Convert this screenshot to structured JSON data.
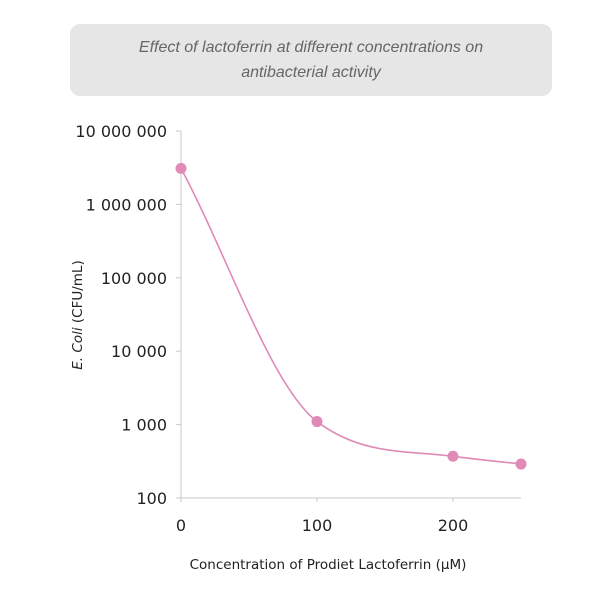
{
  "chart_data": {
    "type": "line",
    "title": "Effect of lactoferrin at different concentrations on antibacterial activity",
    "xlabel": "Concentration of Prodiet Lactoferrin (µM)",
    "ylabel_italic": "E. Coli",
    "ylabel_rest": " (CFU/mL)",
    "yscale": "log",
    "ylim": [
      100,
      10000000
    ],
    "xlim": [
      0,
      250
    ],
    "x_ticks": [
      0,
      100,
      200
    ],
    "x_tick_labels": [
      "0",
      "100",
      "200"
    ],
    "y_ticks": [
      100,
      1000,
      10000,
      100000,
      1000000,
      10000000
    ],
    "y_tick_labels": [
      "100",
      "1 000",
      "10 000",
      "100 000",
      "1 000 000",
      "10 000 000"
    ],
    "series": [
      {
        "name": "E. Coli",
        "color": "#e08ab8",
        "x": [
          0,
          100,
          200,
          250
        ],
        "y": [
          3100000,
          1100,
          370,
          290
        ]
      }
    ],
    "grid": false
  }
}
